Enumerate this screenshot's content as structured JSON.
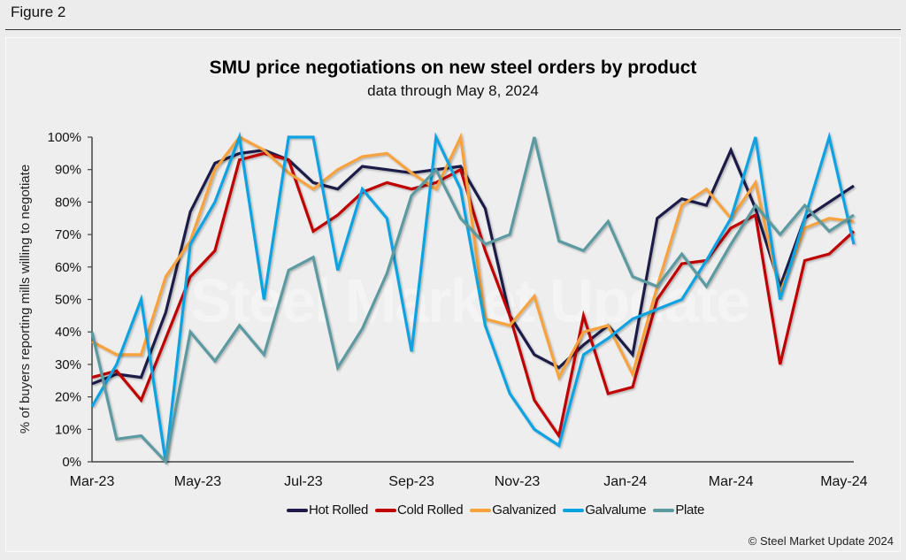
{
  "figure_label": "Figure 2",
  "watermark_text": "Steel Market Update",
  "copyright": "© Steel Market Update 2024",
  "chart_data": {
    "type": "line",
    "title": "SMU price negotiations on new steel orders by product",
    "subtitle": "data through May 8, 2024",
    "xlabel": "",
    "ylabel": "% of buyers reporting mills willing to negotiate",
    "ylim": [
      0,
      100
    ],
    "yticks": [
      "0%",
      "10%",
      "20%",
      "30%",
      "40%",
      "50%",
      "60%",
      "70%",
      "80%",
      "90%",
      "100%"
    ],
    "xtick_labels": [
      "Mar-23",
      "May-23",
      "Jul-23",
      "Sep-23",
      "Nov-23",
      "Jan-24",
      "Mar-24",
      "May-24"
    ],
    "xtick_positions": [
      0,
      4.3,
      8.6,
      13.0,
      17.3,
      21.7,
      26.0,
      30.6
    ],
    "x_count": 32,
    "grid": false,
    "legend_position": "bottom",
    "series": [
      {
        "name": "Hot Rolled",
        "color": "#1f1a4a",
        "values": [
          24,
          27,
          26,
          46,
          77,
          92,
          95,
          96,
          93,
          86,
          84,
          91,
          90,
          89,
          90,
          91,
          78,
          45,
          33,
          29,
          36,
          42,
          33,
          75,
          81,
          79,
          96,
          78,
          54,
          75,
          80,
          85
        ]
      },
      {
        "name": "Cold Rolled",
        "color": "#c00000",
        "values": [
          26,
          28,
          19,
          38,
          57,
          65,
          93,
          95,
          93,
          71,
          76,
          83,
          86,
          84,
          86,
          90,
          65,
          45,
          19,
          8,
          45,
          21,
          23,
          50,
          61,
          62,
          72,
          76,
          30,
          62,
          64,
          71
        ]
      },
      {
        "name": "Galvanized",
        "color": "#f8a23c",
        "values": [
          37,
          33,
          33,
          57,
          68,
          90,
          100,
          96,
          89,
          84,
          90,
          94,
          95,
          89,
          84,
          100,
          44,
          42,
          51,
          26,
          40,
          42,
          27,
          54,
          79,
          84,
          75,
          86,
          52,
          72,
          75,
          74
        ]
      },
      {
        "name": "Galvalume",
        "color": "#0aa3e2",
        "values": [
          17,
          30,
          50,
          0,
          67,
          80,
          100,
          50,
          100,
          100,
          59,
          84,
          75,
          34,
          100,
          84,
          42,
          21,
          10,
          5,
          33,
          38,
          44,
          47,
          50,
          62,
          75,
          100,
          50,
          75,
          100,
          67
        ]
      },
      {
        "name": "Plate",
        "color": "#5a9aa0",
        "values": [
          40,
          7,
          8,
          0,
          40,
          31,
          42,
          33,
          59,
          63,
          29,
          41,
          58,
          82,
          90,
          75,
          67,
          70,
          100,
          68,
          65,
          74,
          57,
          54,
          64,
          54,
          67,
          79,
          70,
          79,
          71,
          76
        ]
      }
    ]
  }
}
